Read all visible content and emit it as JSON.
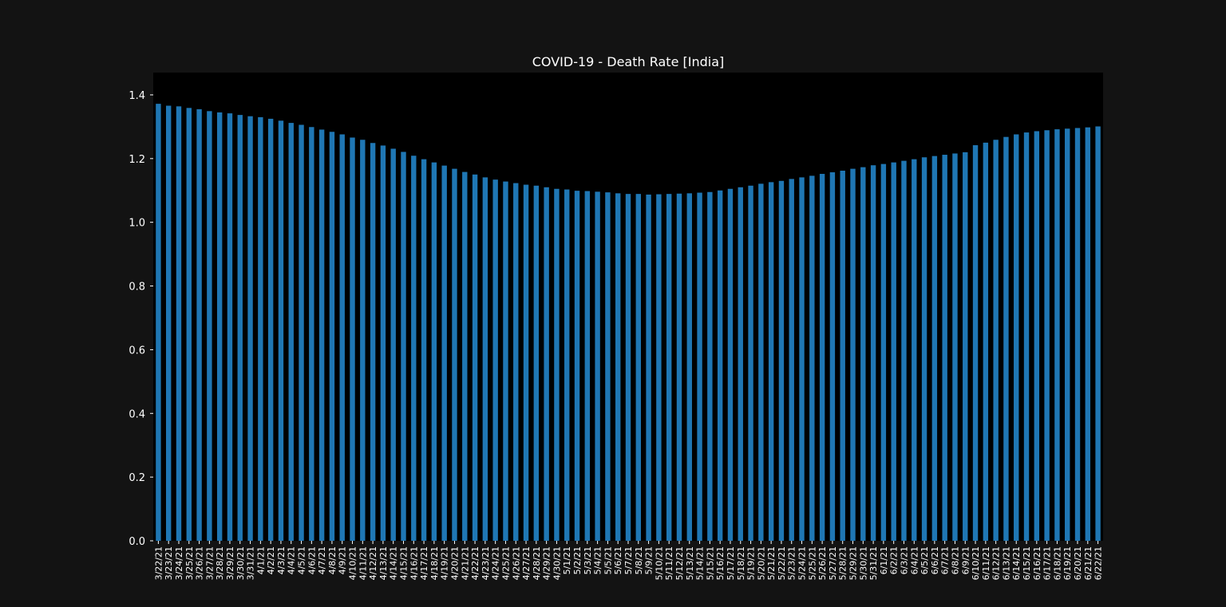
{
  "chart_data": {
    "type": "bar",
    "title": "COVID-19 - Death Rate [India]",
    "xlabel": "",
    "ylabel": "",
    "ylim": [
      0,
      1.47
    ],
    "yticks": [
      "0.0",
      "0.2",
      "0.4",
      "0.6",
      "0.8",
      "1.0",
      "1.2",
      "1.4"
    ],
    "grid": false,
    "legend": "none",
    "colors": {
      "figure_bg": "#131313",
      "axes_bg": "#000000",
      "bar": "#1f77b4",
      "text": "#ffffff"
    },
    "categories": [
      "3/22/21",
      "3/23/21",
      "3/24/21",
      "3/25/21",
      "3/26/21",
      "3/27/21",
      "3/28/21",
      "3/29/21",
      "3/30/21",
      "3/31/21",
      "4/1/21",
      "4/2/21",
      "4/3/21",
      "4/4/21",
      "4/5/21",
      "4/6/21",
      "4/7/21",
      "4/8/21",
      "4/9/21",
      "4/10/21",
      "4/11/21",
      "4/12/21",
      "4/13/21",
      "4/14/21",
      "4/15/21",
      "4/16/21",
      "4/17/21",
      "4/18/21",
      "4/19/21",
      "4/20/21",
      "4/21/21",
      "4/22/21",
      "4/23/21",
      "4/24/21",
      "4/25/21",
      "4/26/21",
      "4/27/21",
      "4/28/21",
      "4/29/21",
      "4/30/21",
      "5/1/21",
      "5/2/21",
      "5/3/21",
      "5/4/21",
      "5/5/21",
      "5/6/21",
      "5/7/21",
      "5/8/21",
      "5/9/21",
      "5/10/21",
      "5/11/21",
      "5/12/21",
      "5/13/21",
      "5/14/21",
      "5/15/21",
      "5/16/21",
      "5/17/21",
      "5/18/21",
      "5/19/21",
      "5/20/21",
      "5/21/21",
      "5/22/21",
      "5/23/21",
      "5/24/21",
      "5/25/21",
      "5/26/21",
      "5/27/21",
      "5/28/21",
      "5/29/21",
      "5/30/21",
      "5/31/21",
      "6/1/21",
      "6/2/21",
      "6/3/21",
      "6/4/21",
      "6/5/21",
      "6/6/21",
      "6/7/21",
      "6/8/21",
      "6/9/21",
      "6/10/21",
      "6/11/21",
      "6/12/21",
      "6/13/21",
      "6/14/21",
      "6/15/21",
      "6/16/21",
      "6/17/21",
      "6/18/21",
      "6/19/21",
      "6/20/21",
      "6/21/21",
      "6/22/21"
    ],
    "values": [
      1.372,
      1.366,
      1.364,
      1.359,
      1.355,
      1.349,
      1.345,
      1.342,
      1.337,
      1.333,
      1.33,
      1.325,
      1.319,
      1.312,
      1.306,
      1.299,
      1.291,
      1.284,
      1.276,
      1.266,
      1.259,
      1.249,
      1.241,
      1.231,
      1.221,
      1.209,
      1.198,
      1.188,
      1.178,
      1.168,
      1.158,
      1.15,
      1.141,
      1.134,
      1.128,
      1.123,
      1.118,
      1.115,
      1.11,
      1.105,
      1.103,
      1.099,
      1.098,
      1.096,
      1.094,
      1.091,
      1.089,
      1.089,
      1.087,
      1.088,
      1.089,
      1.09,
      1.091,
      1.093,
      1.095,
      1.1,
      1.105,
      1.11,
      1.115,
      1.121,
      1.126,
      1.13,
      1.136,
      1.141,
      1.146,
      1.152,
      1.157,
      1.162,
      1.168,
      1.173,
      1.179,
      1.183,
      1.188,
      1.193,
      1.198,
      1.204,
      1.208,
      1.212,
      1.216,
      1.22,
      1.242,
      1.25,
      1.259,
      1.268,
      1.276,
      1.282,
      1.286,
      1.289,
      1.292,
      1.294,
      1.296,
      1.298,
      1.301
    ]
  }
}
